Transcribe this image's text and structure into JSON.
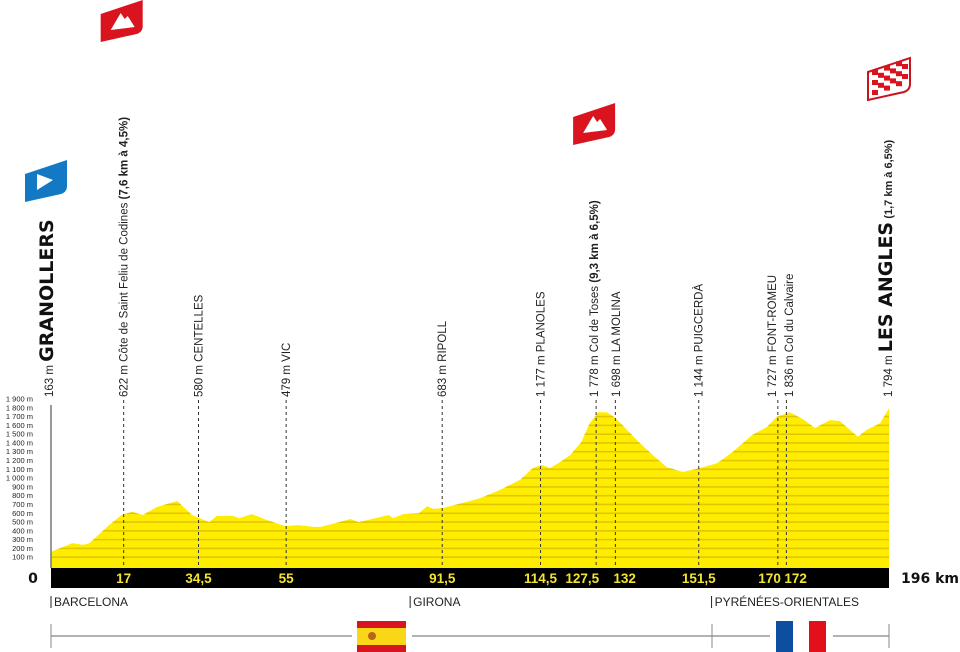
{
  "chart_data": {
    "type": "area",
    "xlim": [
      0,
      196
    ],
    "ylim": [
      0,
      1900
    ],
    "y_ticks": [
      100,
      200,
      300,
      400,
      500,
      600,
      700,
      800,
      900,
      1000,
      1100,
      1200,
      1300,
      1400,
      1500,
      1600,
      1700,
      1800,
      1900
    ],
    "y_tick_labels": [
      "100 m",
      "200 m",
      "300 m",
      "400 m",
      "500 m",
      "600 m",
      "700 m",
      "800 m",
      "900 m",
      "1 000 m",
      "1 100 m",
      "1 200 m",
      "1 300 m",
      "1 400 m",
      "1 500 m",
      "1 600 m",
      "1 700 m",
      "1 800 m",
      "1 900 m"
    ],
    "grid": true,
    "colors": {
      "fill": "#FFED00",
      "grid": "#E3C600",
      "band": "#000000",
      "km_text": "#F2E431"
    },
    "profile": {
      "km": [
        0,
        5,
        7.5,
        9,
        13,
        16.5,
        19,
        21.5,
        24.7,
        29.5,
        33,
        37,
        38.8,
        42.6,
        44,
        47,
        50.4,
        54.7,
        58,
        61.3,
        63,
        66,
        70,
        72,
        75,
        79,
        80,
        82.4,
        86,
        88,
        89.4,
        91.7,
        93.3,
        98.7,
        100.3,
        105,
        109.7,
        112.7,
        114.8,
        116.7,
        119,
        121.4,
        124,
        126,
        128,
        130,
        132,
        134.7,
        137.7,
        140.8,
        144,
        147.8,
        151.8,
        155.8,
        159.5,
        164,
        167.4,
        169.8,
        172.8,
        175.9,
        178.7,
        182.2,
        184.5,
        188.7,
        190.8,
        193.9,
        196
      ],
      "elev": [
        163,
        260,
        240,
        260,
        440,
        580,
        615,
        580,
        670,
        740,
        580,
        500,
        570,
        570,
        545,
        590,
        525,
        455,
        465,
        445,
        445,
        480,
        535,
        500,
        535,
        580,
        545,
        590,
        600,
        680,
        650,
        660,
        680,
        750,
        770,
        865,
        980,
        1115,
        1150,
        1115,
        1180,
        1260,
        1410,
        1625,
        1750,
        1750,
        1685,
        1550,
        1400,
        1260,
        1125,
        1070,
        1115,
        1170,
        1300,
        1490,
        1580,
        1700,
        1750,
        1670,
        1570,
        1660,
        1650,
        1470,
        1550,
        1625,
        1794
      ]
    },
    "start_label": "0",
    "end_label": "196 km",
    "points": [
      {
        "km": 0,
        "km_label": "",
        "alt": "163 m",
        "name": "GRANOLLERS",
        "extra": "",
        "type": "start",
        "big": true
      },
      {
        "km": 17,
        "km_label": "17",
        "alt": "622 m",
        "name": "Côte de Saint Feliu de Codines",
        "extra": "(7,6 km à 4,5%)",
        "type": "climb"
      },
      {
        "km": 34.5,
        "km_label": "34,5",
        "alt": "580 m",
        "name": "CENTELLES",
        "extra": ""
      },
      {
        "km": 55,
        "km_label": "55",
        "alt": "479 m",
        "name": "VIC",
        "extra": ""
      },
      {
        "km": 91.5,
        "km_label": "91,5",
        "alt": "683 m",
        "name": "RIPOLL",
        "extra": ""
      },
      {
        "km": 114.5,
        "km_label": "114,5",
        "alt": "1 177 m",
        "name": "PLANOLES",
        "extra": ""
      },
      {
        "km": 127.5,
        "km_label": "127,5",
        "alt": "1 778 m",
        "name": "Col de Toses",
        "extra": "(9,3 km à 6,5%)",
        "type": "climb"
      },
      {
        "km": 132,
        "km_label": "132",
        "alt": "1 698 m",
        "name": "LA MOLINA",
        "extra": ""
      },
      {
        "km": 151.5,
        "km_label": "151,5",
        "alt": "1 144 m",
        "name": "PUIGCERDÀ",
        "extra": ""
      },
      {
        "km": 170,
        "km_label": "170",
        "alt": "1 727 m",
        "name": "FONT-ROMEU",
        "extra": ""
      },
      {
        "km": 172,
        "km_label": "172",
        "alt": "1 836 m",
        "name": "Col du Calvaire",
        "extra": ""
      },
      {
        "km": 196,
        "km_label": "",
        "alt": "1 794 m",
        "name": "LES ANGLES",
        "extra": "(1,7 km à 6,5%)",
        "type": "finish",
        "big": true
      }
    ],
    "regions": [
      {
        "km": 0,
        "name": "BARCELONA"
      },
      {
        "km": 84,
        "name": "GIRONA"
      },
      {
        "km": 154.5,
        "name": "PYRÉNÉES-ORIENTALES"
      }
    ],
    "countries": [
      {
        "name": "Spain",
        "flag": "es-flag-icon",
        "colors": [
          "#D8141E",
          "#F9D616"
        ]
      },
      {
        "name": "France",
        "flag": "fr-flag-icon",
        "colors": [
          "#0E4EA0",
          "#FFFFFF",
          "#E1101A"
        ]
      }
    ],
    "icons": {
      "start": "start-flag-icon",
      "climb": "mountain-climb-icon",
      "finish": "checkered-finish-icon"
    }
  }
}
